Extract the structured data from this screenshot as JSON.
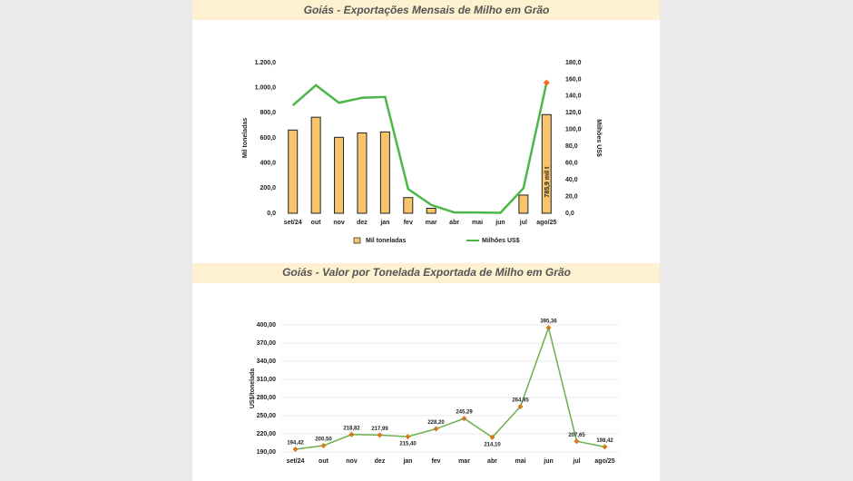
{
  "chart_data": [
    {
      "type": "bar_line",
      "title": "Goiás - Exportações Mensais de Milho em Grão",
      "categories": [
        "set/24",
        "out",
        "nov",
        "dez",
        "jan",
        "fev",
        "mar",
        "abr",
        "mai",
        "jun",
        "jul",
        "ago/25"
      ],
      "series": [
        {
          "name": "Mil toneladas",
          "type": "bar",
          "color": "#f7c46c",
          "values": [
            663,
            765,
            605,
            640,
            648,
            125,
            40,
            0,
            0,
            0,
            145,
            785.9
          ]
        },
        {
          "name": "Milhões US$",
          "type": "line",
          "axis": "y2",
          "color": "#4cb648",
          "last_point_color": "#f26b1d",
          "values": [
            129,
            153,
            132,
            138,
            139,
            29,
            10,
            1,
            1,
            0.5,
            30,
            156
          ]
        }
      ],
      "ylabel": "Mil toneladas",
      "y2label": "Milhões US$",
      "annotation": "785,9 mil t",
      "ylim": [
        0,
        1200
      ],
      "yticks": [
        {
          "value": 0,
          "label": "0,0"
        },
        {
          "value": 200,
          "label": "200,0"
        },
        {
          "value": 400,
          "label": "400,0"
        },
        {
          "value": 600,
          "label": "600,0"
        },
        {
          "value": 800,
          "label": "800,0"
        },
        {
          "value": 1000,
          "label": "1.000,0"
        },
        {
          "value": 1200,
          "label": "1.200,0"
        }
      ],
      "y2lim": [
        0,
        180
      ],
      "y2ticks": [
        {
          "value": 0,
          "label": "0,0"
        },
        {
          "value": 20,
          "label": "20,0"
        },
        {
          "value": 40,
          "label": "40,0"
        },
        {
          "value": 60,
          "label": "60,0"
        },
        {
          "value": 80,
          "label": "80,0"
        },
        {
          "value": 100,
          "label": "100,0"
        },
        {
          "value": 120,
          "label": "120,0"
        },
        {
          "value": 140,
          "label": "140,0"
        },
        {
          "value": 160,
          "label": "160,0"
        },
        {
          "value": 180,
          "label": "180,0"
        }
      ],
      "legend": "bottom",
      "grid": false
    },
    {
      "type": "line",
      "title": "Goiás - Valor por Tonelada Exportada de Milho em Grão",
      "categories": [
        "set/24",
        "out",
        "nov",
        "dez",
        "jan",
        "fev",
        "mar",
        "abr",
        "mai",
        "jun",
        "jul",
        "ago/25"
      ],
      "values": [
        194.42,
        200.5,
        218.82,
        217.99,
        215.4,
        228.2,
        245.29,
        214.1,
        264.95,
        395.36,
        207.65,
        198.42
      ],
      "value_labels": [
        "194,42",
        "200,50",
        "218,82",
        "217,99",
        "215,40",
        "228,20",
        "245,29",
        "214,10",
        "264,95",
        "395,36",
        "207,65",
        "198,42"
      ],
      "color": "#6ab04c",
      "marker_color": "#d9761a",
      "ylabel": "US$/tonelada",
      "ylim": [
        190,
        400
      ],
      "yticks": [
        {
          "value": 190,
          "label": "190,00"
        },
        {
          "value": 220,
          "label": "220,00"
        },
        {
          "value": 250,
          "label": "250,00"
        },
        {
          "value": 280,
          "label": "280,00"
        },
        {
          "value": 310,
          "label": "310,00"
        },
        {
          "value": 340,
          "label": "340,00"
        },
        {
          "value": 370,
          "label": "370,00"
        },
        {
          "value": 400,
          "label": "400,00"
        }
      ],
      "grid": true
    }
  ]
}
